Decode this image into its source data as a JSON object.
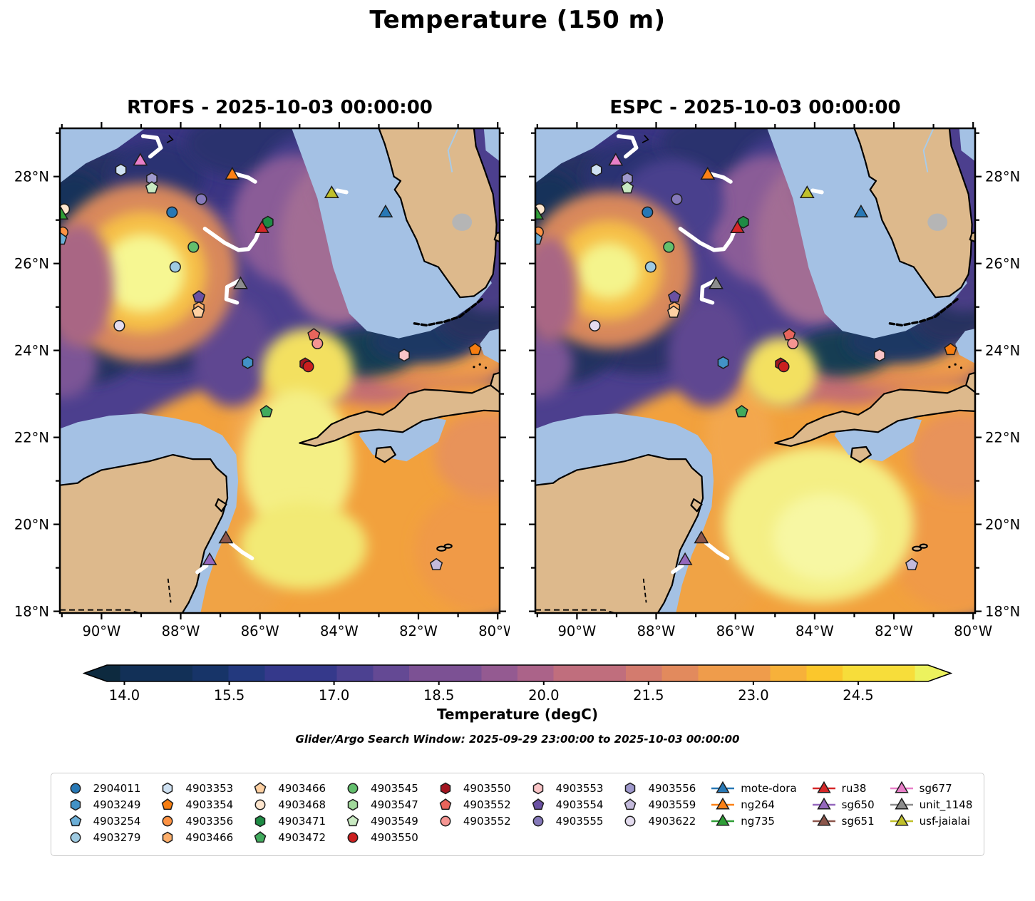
{
  "title": "Temperature (150 m)",
  "panels": [
    {
      "id": "rtofs",
      "title": "RTOFS - 2025-10-03 00:00:00"
    },
    {
      "id": "espc",
      "title": "ESPC - 2025-10-03 00:00:00"
    }
  ],
  "axes": {
    "lon_tick_labels": [
      "90°W",
      "88°W",
      "86°W",
      "84°W",
      "82°W",
      "80°W"
    ],
    "lat_tick_labels": [
      "28°N",
      "26°N",
      "24°N",
      "22°N",
      "20°N",
      "18°N"
    ]
  },
  "search_window": "Glider/Argo Search Window: 2025-09-29 23:00:00 to 2025-10-03 00:00:00",
  "colors": {
    "shelf_water": "#a4c1e4",
    "land": "#ddb98c",
    "lake": "#b5b5b5",
    "coastline": "#000000",
    "track": "#ffffff"
  },
  "chart_data": {
    "type": "heatmap",
    "title": "Temperature (150 m)",
    "panels": [
      {
        "model": "RTOFS",
        "timestamp": "2025-10-03 00:00:00",
        "title": "RTOFS - 2025-10-03 00:00:00"
      },
      {
        "model": "ESPC",
        "timestamp": "2025-10-03 00:00:00",
        "title": "ESPC - 2025-10-03 00:00:00"
      }
    ],
    "extent": {
      "lon_min": -91.05,
      "lon_max": -79.95,
      "lat_min": 17.96,
      "lat_max": 29.11
    },
    "lon_ticks_deg": [
      -90,
      -88,
      -86,
      -84,
      -82,
      -80
    ],
    "lat_ticks_deg": [
      28,
      26,
      24,
      22,
      20,
      18
    ],
    "colorbar": {
      "label": "Temperature (degC)",
      "tick_labels": [
        "14.0",
        "15.5",
        "17.0",
        "18.5",
        "20.0",
        "21.5",
        "23.0",
        "24.5"
      ],
      "ticks": [
        14.0,
        15.5,
        17.0,
        18.5,
        20.0,
        21.5,
        23.0,
        24.5
      ],
      "vmin": 13.75,
      "vmax": 25.5,
      "colormap_stops": [
        "#0d2a3f",
        "#123057",
        "#173468",
        "#23397e",
        "#35398b",
        "#4c4191",
        "#644994",
        "#7c5194",
        "#945a91",
        "#ab6389",
        "#c06e7d",
        "#d37b6e",
        "#e28a5d",
        "#ef9c4b",
        "#f7b13a",
        "#fbc72c",
        "#f7dd3a",
        "#ecf25e"
      ]
    },
    "markers": [
      {
        "id": "sg677",
        "shape": "triangle",
        "color": "#e87fc8",
        "lon": -89.02,
        "lat": 28.35
      },
      {
        "id": "4903353",
        "shape": "hexagon",
        "color": "#cfe1f2",
        "lon": -89.51,
        "lat": 28.15
      },
      {
        "id": "4903556",
        "shape": "hexagon",
        "color": "#9f99cc",
        "lon": -88.73,
        "lat": 27.95
      },
      {
        "id": "4903549",
        "shape": "pentagon",
        "color": "#c9eac2",
        "lon": -88.73,
        "lat": 27.74
      },
      {
        "id": "ng264",
        "shape": "triangle",
        "color": "#fd8114",
        "lon": -86.7,
        "lat": 28.03
      },
      {
        "id": "usf-jaialai",
        "shape": "triangle",
        "color": "#c0c02a",
        "lon": -84.19,
        "lat": 27.6
      },
      {
        "id": "mote-dora",
        "shape": "triangle",
        "color": "#2878b5",
        "lon": -82.83,
        "lat": 27.16
      },
      {
        "id": "4903555",
        "shape": "circle",
        "color": "#8579b9",
        "lon": -87.48,
        "lat": 27.48
      },
      {
        "id": "2904011",
        "shape": "circle",
        "color": "#2878b5",
        "lon": -88.22,
        "lat": 27.18
      },
      {
        "id": "4903468",
        "shape": "circle",
        "color": "#fee6ce",
        "lon": -90.94,
        "lat": 27.25
      },
      {
        "id": "ng735",
        "shape": "triangle",
        "color": "#2f9e37",
        "lon": -91.02,
        "lat": 27.11
      },
      {
        "id": "4903356",
        "shape": "circle",
        "color": "#fd9243",
        "lon": -90.98,
        "lat": 26.72
      },
      {
        "id": "4903254",
        "shape": "pentagon",
        "color": "#6baed6",
        "lon": -91.03,
        "lat": 26.56
      },
      {
        "id": "4903471",
        "shape": "hexagon",
        "color": "#1e8b44",
        "lon": -85.8,
        "lat": 26.95
      },
      {
        "id": "ru38",
        "shape": "triangle",
        "color": "#d62728",
        "lon": -85.95,
        "lat": 26.8
      },
      {
        "id": "4903545",
        "shape": "circle",
        "color": "#63bf6d",
        "lon": -87.68,
        "lat": 26.38
      },
      {
        "id": "4903279",
        "shape": "circle",
        "color": "#9ecae1",
        "lon": -88.14,
        "lat": 25.92
      },
      {
        "id": "unit_1148",
        "shape": "triangle",
        "color": "#8c8c8c",
        "lon": -86.49,
        "lat": 25.51
      },
      {
        "id": "4903554",
        "shape": "pentagon",
        "color": "#6a51a3",
        "lon": -87.54,
        "lat": 25.23
      },
      {
        "id": "4903466",
        "shape": "hexagon",
        "color": "#fdae6b",
        "lon": -87.54,
        "lat": 24.98
      },
      {
        "id": "4903466",
        "shape": "pentagon",
        "color": "#fdd0a2",
        "lon": -87.56,
        "lat": 24.88
      },
      {
        "id": "4903622",
        "shape": "circle",
        "color": "#e4dcef",
        "lon": -89.55,
        "lat": 24.57
      },
      {
        "id": "4903552",
        "shape": "pentagon",
        "color": "#e8655c",
        "lon": -84.64,
        "lat": 24.36
      },
      {
        "id": "4903552",
        "shape": "circle",
        "color": "#f59592",
        "lon": -84.55,
        "lat": 24.16
      },
      {
        "id": "4903553",
        "shape": "hexagon",
        "color": "#f9c4c6",
        "lon": -82.36,
        "lat": 23.89
      },
      {
        "id": "4903354",
        "shape": "pentagon",
        "color": "#f67d10",
        "lon": -80.57,
        "lat": 24.02
      },
      {
        "id": "4903249",
        "shape": "hexagon",
        "color": "#4292c6",
        "lon": -86.31,
        "lat": 23.72
      },
      {
        "id": "4903550",
        "shape": "hexagon",
        "color": "#a31520",
        "lon": -84.86,
        "lat": 23.69
      },
      {
        "id": "4903550",
        "shape": "circle",
        "color": "#cb1f1f",
        "lon": -84.78,
        "lat": 23.63
      },
      {
        "id": "4903472",
        "shape": "pentagon",
        "color": "#41ab5d",
        "lon": -85.84,
        "lat": 22.59
      },
      {
        "id": "sg651",
        "shape": "triangle",
        "color": "#8c564b",
        "lon": -86.86,
        "lat": 19.66
      },
      {
        "id": "sg650",
        "shape": "triangle",
        "color": "#9467bd",
        "lon": -87.27,
        "lat": 19.16
      },
      {
        "id": "4903559",
        "shape": "pentagon",
        "color": "#c3badb",
        "lon": -81.55,
        "lat": 19.07
      }
    ],
    "tracks": [
      {
        "id": "sg677",
        "points": [
          [
            -88.95,
            28.93
          ],
          [
            -88.6,
            28.89
          ],
          [
            -88.5,
            28.66
          ],
          [
            -88.77,
            28.46
          ]
        ]
      },
      {
        "id": "ng264",
        "points": [
          [
            -86.62,
            28.06
          ],
          [
            -86.3,
            27.98
          ],
          [
            -86.12,
            27.88
          ]
        ]
      },
      {
        "id": "usf-jaialai",
        "points": [
          [
            -84.05,
            27.68
          ],
          [
            -83.82,
            27.64
          ]
        ]
      },
      {
        "id": "ru38",
        "points": [
          [
            -87.39,
            26.8
          ],
          [
            -86.9,
            26.48
          ],
          [
            -86.54,
            26.31
          ],
          [
            -86.29,
            26.33
          ],
          [
            -86.11,
            26.56
          ],
          [
            -86.04,
            26.72
          ]
        ]
      },
      {
        "id": "unit_1148",
        "points": [
          [
            -86.49,
            25.62
          ],
          [
            -86.83,
            25.46
          ],
          [
            -86.85,
            25.18
          ],
          [
            -86.58,
            25.1
          ]
        ]
      },
      {
        "id": "sg651",
        "points": [
          [
            -86.75,
            19.58
          ],
          [
            -86.45,
            19.36
          ],
          [
            -86.2,
            19.22
          ]
        ]
      },
      {
        "id": "sg650",
        "points": [
          [
            -87.58,
            18.9
          ],
          [
            -87.35,
            19.05
          ]
        ]
      }
    ]
  },
  "legend": {
    "columns": [
      {
        "entries": [
          {
            "label": "2904011",
            "shape": "circle",
            "color": "#2878b5"
          },
          {
            "label": "4903249",
            "shape": "hexagon",
            "color": "#4292c6"
          },
          {
            "label": "4903254",
            "shape": "pentagon",
            "color": "#6baed6"
          },
          {
            "label": "4903279",
            "shape": "circle",
            "color": "#9ecae1"
          }
        ]
      },
      {
        "entries": [
          {
            "label": "4903353",
            "shape": "hexagon",
            "color": "#cfe1f2"
          },
          {
            "label": "4903354",
            "shape": "pentagon",
            "color": "#f67d10"
          },
          {
            "label": "4903356",
            "shape": "circle",
            "color": "#fd9243"
          },
          {
            "label": "4903466",
            "shape": "hexagon",
            "color": "#fdae6b"
          }
        ]
      },
      {
        "entries": [
          {
            "label": "4903466",
            "shape": "pentagon",
            "color": "#fdd0a2"
          },
          {
            "label": "4903468",
            "shape": "circle",
            "color": "#fee6ce"
          },
          {
            "label": "4903471",
            "shape": "hexagon",
            "color": "#1e8b44"
          },
          {
            "label": "4903472",
            "shape": "pentagon",
            "color": "#41ab5d"
          }
        ]
      },
      {
        "entries": [
          {
            "label": "4903545",
            "shape": "circle",
            "color": "#63bf6d"
          },
          {
            "label": "4903547",
            "shape": "hexagon",
            "color": "#a1d99b"
          },
          {
            "label": "4903549",
            "shape": "pentagon",
            "color": "#c9eac2"
          },
          {
            "label": "4903550",
            "shape": "circle",
            "color": "#cb1f1f"
          }
        ]
      },
      {
        "entries": [
          {
            "label": "4903550",
            "shape": "hexagon",
            "color": "#a31520"
          },
          {
            "label": "4903552",
            "shape": "pentagon",
            "color": "#e8655c"
          },
          {
            "label": "4903552",
            "shape": "circle",
            "color": "#f59592"
          }
        ]
      },
      {
        "entries": [
          {
            "label": "4903553",
            "shape": "hexagon",
            "color": "#f9c4c6"
          },
          {
            "label": "4903554",
            "shape": "pentagon",
            "color": "#6a51a3"
          },
          {
            "label": "4903555",
            "shape": "circle",
            "color": "#8579b9"
          }
        ]
      },
      {
        "entries": [
          {
            "label": "4903556",
            "shape": "hexagon",
            "color": "#9f99cc"
          },
          {
            "label": "4903559",
            "shape": "pentagon",
            "color": "#c3badb"
          },
          {
            "label": "4903622",
            "shape": "circle",
            "color": "#e4dcef"
          }
        ]
      },
      {
        "entries": [
          {
            "label": "mote-dora",
            "shape": "triangle",
            "color": "#2878b5",
            "line": true
          },
          {
            "label": "ng264",
            "shape": "triangle",
            "color": "#fd8114",
            "line": true
          },
          {
            "label": "ng735",
            "shape": "triangle",
            "color": "#2f9e37",
            "line": true
          }
        ]
      },
      {
        "entries": [
          {
            "label": "ru38",
            "shape": "triangle",
            "color": "#d62728",
            "line": true
          },
          {
            "label": "sg650",
            "shape": "triangle",
            "color": "#9467bd",
            "line": true
          },
          {
            "label": "sg651",
            "shape": "triangle",
            "color": "#8c564b",
            "line": true
          }
        ]
      },
      {
        "entries": [
          {
            "label": "sg677",
            "shape": "triangle",
            "color": "#e87fc8",
            "line": true
          },
          {
            "label": "unit_1148",
            "shape": "triangle",
            "color": "#8c8c8c",
            "line": true
          },
          {
            "label": "usf-jaialai",
            "shape": "triangle",
            "color": "#c0c02a",
            "line": true
          }
        ]
      }
    ]
  }
}
